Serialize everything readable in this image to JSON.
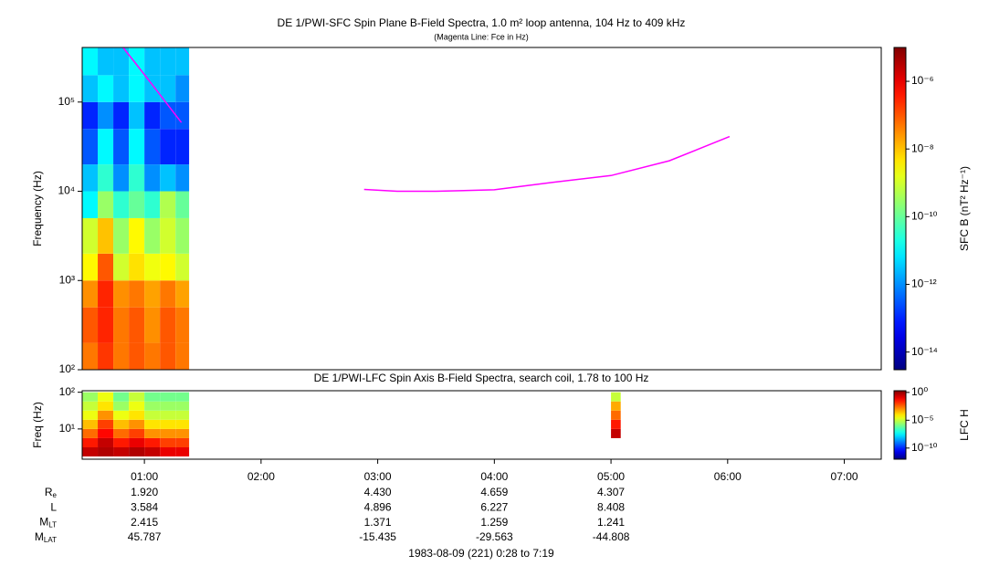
{
  "chart_data": [
    {
      "type": "spectrogram",
      "title": "DE 1/PWI-SFC  Spin Plane B-Field Spectra, 1.0 m² loop antenna, 104 Hz to 409 kHz",
      "subtitle": "(Magenta Line: Fce in Hz)",
      "y_label": "Frequency (Hz)",
      "y_log": true,
      "ylim": [
        100,
        409000
      ],
      "yticks": [
        {
          "value": 100,
          "label": "10²"
        },
        {
          "value": 1000,
          "label": "10³"
        },
        {
          "value": 10000,
          "label": "10⁴"
        },
        {
          "value": 100000,
          "label": "10⁵"
        }
      ],
      "xlim": [
        "00:28",
        "07:19"
      ],
      "time_bins": [
        "00:28",
        "00:36",
        "00:44",
        "00:52",
        "01:00",
        "01:08",
        "01:16",
        "01:23"
      ],
      "freq_bins": [
        100,
        200,
        500,
        1000,
        2000,
        5000,
        10000,
        20000,
        50000,
        100000,
        200000,
        409000
      ],
      "values": [
        [
          5e-08,
          2e-07,
          5e-08,
          1e-07,
          5e-08,
          1e-07,
          5e-08
        ],
        [
          1e-07,
          3e-07,
          5e-08,
          1e-07,
          3e-08,
          1e-07,
          5e-08
        ],
        [
          3e-08,
          3e-07,
          3e-08,
          5e-08,
          2e-08,
          5e-08,
          2e-08
        ],
        [
          3e-09,
          1e-07,
          1e-09,
          5e-09,
          2e-09,
          3e-09,
          1e-09
        ],
        [
          1e-09,
          1e-08,
          3e-10,
          3e-09,
          3e-10,
          1e-09,
          3e-10
        ],
        [
          1e-11,
          3e-10,
          3e-11,
          1e-10,
          3e-11,
          5e-10,
          1e-10
        ],
        [
          3e-12,
          3e-11,
          1e-12,
          3e-11,
          1e-12,
          3e-12,
          1e-12
        ],
        [
          3e-13,
          1e-11,
          3e-13,
          1e-11,
          3e-13,
          1e-13,
          1e-13
        ],
        [
          1e-13,
          1e-12,
          1e-13,
          3e-12,
          1e-13,
          3e-13,
          3e-13
        ],
        [
          3e-12,
          1e-11,
          3e-12,
          1e-11,
          3e-12,
          3e-12,
          1e-12
        ],
        [
          1e-11,
          3e-12,
          3e-12,
          1e-11,
          3e-12,
          3e-12,
          3e-12
        ]
      ],
      "colormap": "jet",
      "z_log": true,
      "zlim": [
        3e-15,
        1e-05
      ],
      "zticks": [
        {
          "value": 1e-14,
          "label": "10⁻¹⁴"
        },
        {
          "value": 1e-12,
          "label": "10⁻¹²"
        },
        {
          "value": 1e-10,
          "label": "10⁻¹⁰"
        },
        {
          "value": 1e-08,
          "label": "10⁻⁸"
        },
        {
          "value": 1e-06,
          "label": "10⁻⁶"
        }
      ],
      "z_label": "SFC B (nT² Hz⁻¹)",
      "series": [
        {
          "color": "#ff00ff",
          "x": [
            "00:49",
            "00:55",
            "01:05",
            "01:19",
            "02:00",
            "02:53",
            "03:10",
            "03:30",
            "04:00",
            "04:30",
            "05:00",
            "05:30",
            "06:01"
          ],
          "values": [
            409000,
            280000,
            147000,
            59000,
            null,
            10500,
            10000,
            10000,
            10400,
            12600,
            15000,
            22000,
            41000
          ]
        }
      ]
    },
    {
      "type": "spectrogram",
      "title": "DE 1/PWI-LFC  Spin Axis B-Field Spectra, search coil, 1.78 to 100 Hz",
      "y_label": "Freq (Hz)",
      "y_log": true,
      "ylim": [
        1.5,
        110
      ],
      "yticks": [
        {
          "value": 10,
          "label": "10¹"
        },
        {
          "value": 100,
          "label": "10²"
        }
      ],
      "xlim": [
        "00:28",
        "07:19"
      ],
      "xticks": [
        "01:00",
        "02:00",
        "03:00",
        "04:00",
        "05:00",
        "06:00",
        "07:00"
      ],
      "time_bins": [
        "00:28",
        "00:36",
        "00:44",
        "00:52",
        "01:00",
        "01:08",
        "01:16",
        "01:23",
        "05:00",
        "05:05"
      ],
      "freq_bins": [
        1.78,
        3.16,
        5.62,
        10,
        17.8,
        31.6,
        56.2,
        100
      ],
      "values": [
        [
          0.3,
          0.5,
          0.3,
          0.5,
          0.3,
          0.1,
          0.1,
          null,
          null
        ],
        [
          0.03,
          0.3,
          0.03,
          0.1,
          0.03,
          0.01,
          0.01,
          null,
          null
        ],
        [
          0.003,
          0.05,
          0.003,
          0.01,
          0.001,
          0.001,
          0.001,
          null,
          0.3
        ],
        [
          0.0003,
          0.01,
          0.0003,
          0.001,
          0.0001,
          0.0001,
          0.0001,
          null,
          0.03
        ],
        [
          3e-05,
          0.001,
          3e-05,
          0.0001,
          1e-05,
          1e-05,
          1e-05,
          null,
          0.003
        ],
        [
          1e-05,
          0.0001,
          3e-06,
          3e-05,
          3e-06,
          3e-06,
          3e-06,
          null,
          0.0005
        ],
        [
          3e-06,
          3e-05,
          1e-06,
          1e-05,
          1e-06,
          1e-06,
          1e-06,
          null,
          1e-05
        ]
      ],
      "colormap": "jet",
      "z_log": true,
      "zlim": [
        1e-12,
        2
      ],
      "zticks": [
        {
          "value": 1,
          "label": "10⁰"
        },
        {
          "value": 1e-05,
          "label": "10⁻⁵"
        },
        {
          "value": 1e-10,
          "label": "10⁻¹⁰"
        }
      ],
      "z_label": "LFC H"
    }
  ],
  "ephemeris": {
    "rows": [
      {
        "label": "R",
        "sub": "e",
        "values": [
          "1.920",
          null,
          "4.430",
          "4.659",
          "4.307",
          null,
          null
        ]
      },
      {
        "label": "L",
        "values": [
          "3.584",
          null,
          "4.896",
          "6.227",
          "8.408",
          null,
          null
        ]
      },
      {
        "label": "M",
        "sub": "LT",
        "values": [
          "2.415",
          null,
          "1.371",
          "1.259",
          "1.241",
          null,
          null
        ]
      },
      {
        "label": "M",
        "sub": "LAT",
        "values": [
          "45.787",
          null,
          "-15.435",
          "-29.563",
          "-44.808",
          null,
          null
        ]
      }
    ]
  },
  "footer": "1983-08-09 (221) 0:28 to 7:19"
}
